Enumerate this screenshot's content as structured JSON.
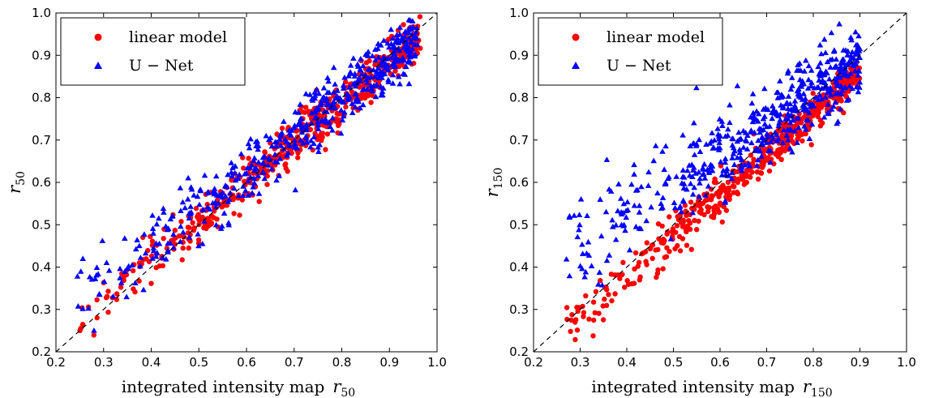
{
  "chart_data": [
    {
      "type": "scatter",
      "xlabel": "integrated intensity map",
      "xlabel_symbol": "r",
      "xlabel_sub": "50",
      "ylabel_symbol": "r",
      "ylabel_sub": "50",
      "xlim": [
        0.2,
        1.0
      ],
      "ylim": [
        0.2,
        1.0
      ],
      "xticks": [
        "0.2",
        "0.3",
        "0.4",
        "0.5",
        "0.6",
        "0.7",
        "0.8",
        "0.9",
        "1.0"
      ],
      "yticks": [
        "0.2",
        "0.3",
        "0.4",
        "0.5",
        "0.6",
        "0.7",
        "0.8",
        "0.9",
        "1.0"
      ],
      "grid": false,
      "legend_position": "top-left",
      "reference_line": {
        "style": "dashed",
        "color": "#000000",
        "from": [
          0.2,
          0.2
        ],
        "to": [
          1.0,
          1.0
        ]
      },
      "series": [
        {
          "name": "linear model",
          "marker": "circle",
          "color": "#ff0000",
          "cloud": {
            "x_range": [
              0.24,
              0.965
            ],
            "slope": 0.93,
            "intercept": 0.045,
            "spread": 0.03
          }
        },
        {
          "name": "U − Net",
          "marker": "triangle",
          "color": "#0000ff",
          "cloud": {
            "x_range": [
              0.24,
              0.96
            ],
            "slope": 0.86,
            "intercept": 0.11,
            "spread": 0.04
          }
        }
      ]
    },
    {
      "type": "scatter",
      "xlabel": "integrated intensity map",
      "xlabel_symbol": "r",
      "xlabel_sub": "150",
      "ylabel_symbol": "r",
      "ylabel_sub": "150",
      "xlim": [
        0.2,
        1.0
      ],
      "ylim": [
        0.2,
        1.0
      ],
      "xticks": [
        "0.2",
        "0.3",
        "0.4",
        "0.5",
        "0.6",
        "0.7",
        "0.8",
        "0.9",
        "1.0"
      ],
      "yticks": [
        "0.2",
        "0.3",
        "0.4",
        "0.5",
        "0.6",
        "0.7",
        "0.8",
        "0.9",
        "1.0"
      ],
      "grid": false,
      "legend_position": "top-left",
      "reference_line": {
        "style": "dashed",
        "color": "#000000",
        "from": [
          0.2,
          0.2
        ],
        "to": [
          1.0,
          1.0
        ]
      },
      "series": [
        {
          "name": "linear model",
          "marker": "circle",
          "color": "#ff0000",
          "cloud": {
            "x_range": [
              0.27,
              0.9
            ],
            "slope": 0.96,
            "intercept": -0.005,
            "spread": 0.025
          }
        },
        {
          "name": "U − Net",
          "marker": "triangle",
          "color": "#0000ff",
          "cloud": {
            "x_range": [
              0.27,
              0.9
            ],
            "slope": 0.75,
            "intercept": 0.21,
            "spread": 0.05
          }
        }
      ]
    }
  ]
}
